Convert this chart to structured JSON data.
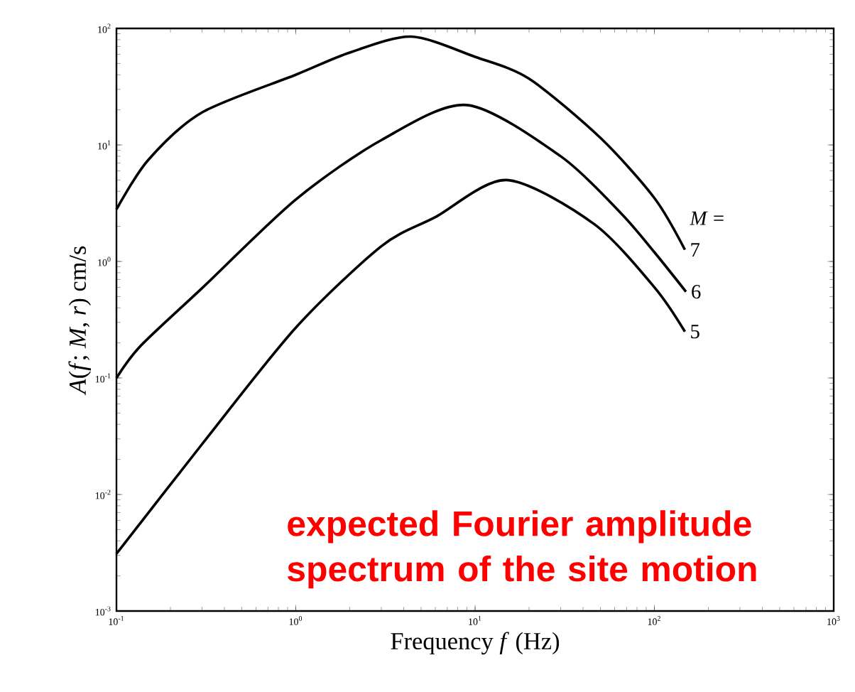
{
  "chart_data": {
    "type": "line",
    "xlabel": "Frequency *f* (Hz)",
    "ylabel": "*A*(*f*; *M*, *r*) cm/s",
    "legend_title": "*M* =",
    "log": "xy",
    "marker": "none",
    "line_style": "solid",
    "xlim": [
      0.1,
      1000
    ],
    "ylim": [
      0.001,
      100
    ],
    "xticks": [
      {
        "value": 0.1,
        "label": "10$^{-1}$"
      },
      {
        "value": 1,
        "label": "10$^{0}$"
      },
      {
        "value": 10,
        "label": "10$^{1}$"
      },
      {
        "value": 100,
        "label": "10$^{2}$"
      },
      {
        "value": 1000,
        "label": "10$^{3}$"
      }
    ],
    "yticks": [
      {
        "value": 0.001,
        "label": "10$^{-3}$"
      },
      {
        "value": 0.01,
        "label": "10$^{-2}$"
      },
      {
        "value": 0.1,
        "label": "10$^{-1}$"
      },
      {
        "value": 1,
        "label": "10$^{0}$"
      },
      {
        "value": 10,
        "label": "10$^{1}$"
      },
      {
        "value": 100,
        "label": "10$^{2}$"
      }
    ],
    "series": [
      {
        "name": "7",
        "color": "#000000",
        "x": [
          0.1,
          0.15,
          0.3,
          1,
          2,
          4.4,
          10,
          20,
          50,
          100,
          148
        ],
        "values": [
          2.8,
          7.4,
          19,
          40,
          62,
          85,
          57,
          37,
          11.5,
          3.5,
          1.26
        ]
      },
      {
        "name": "6",
        "color": "#000000",
        "x": [
          0.1,
          0.137,
          0.3,
          1,
          3,
          9,
          30,
          65,
          100,
          150
        ],
        "values": [
          0.1,
          0.19,
          0.59,
          3.4,
          11,
          22,
          8,
          2.6,
          1.2,
          0.55
        ]
      },
      {
        "name": "5",
        "color": "#000000",
        "x": [
          0.1,
          0.3,
          1,
          3,
          6,
          15,
          46,
          100,
          148
        ],
        "values": [
          0.0031,
          0.027,
          0.27,
          1.35,
          2.4,
          5,
          2.1,
          0.6,
          0.25
        ]
      }
    ],
    "annotations": [
      "expected Fourier amplitude spectrum of the site motion"
    ]
  }
}
